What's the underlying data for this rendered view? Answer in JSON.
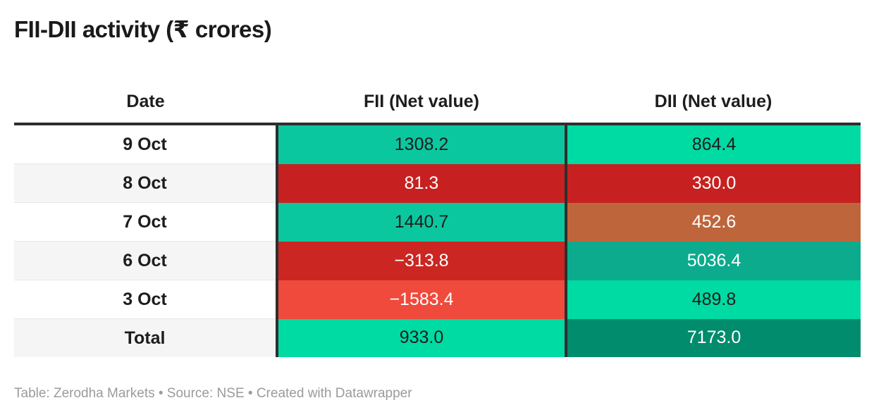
{
  "title": "FII-DII activity (₹ crores)",
  "footer": "Table: Zerodha Markets • Source: NSE • Created with Datawrapper",
  "colors": {
    "header_border": "#2e2e2e",
    "positive_teal": "#0bc7a0",
    "positive_mint": "#00daa3",
    "negative_red": "#c62120",
    "negative_coral": "#ef4a3c",
    "mixed_brown": "#be653c",
    "strong_teal": "#0cab8d",
    "total_green": "#008c6d",
    "alt_row": "#f5f5f5",
    "footer_text": "#9b9b9b"
  },
  "table": {
    "columns": [
      "Date",
      "FII (Net value)",
      "DII (Net value)"
    ],
    "rows": [
      {
        "date": "9 Oct",
        "fii": "1308.2",
        "fii_bg": "#0bc7a0",
        "fii_fg": "#1d1d1d",
        "dii": "864.4",
        "dii_bg": "#00daa3",
        "dii_fg": "#1d1d1d"
      },
      {
        "date": "8 Oct",
        "fii": "81.3",
        "fii_bg": "#c62120",
        "fii_fg": "#ffffff",
        "dii": "330.0",
        "dii_bg": "#c62120",
        "dii_fg": "#ffffff"
      },
      {
        "date": "7 Oct",
        "fii": "1440.7",
        "fii_bg": "#0bc7a0",
        "fii_fg": "#1d1d1d",
        "dii": "452.6",
        "dii_bg": "#be653c",
        "dii_fg": "#ffffff"
      },
      {
        "date": "6 Oct",
        "fii": "−313.8",
        "fii_bg": "#cb2621",
        "fii_fg": "#ffffff",
        "dii": "5036.4",
        "dii_bg": "#0cab8d",
        "dii_fg": "#ffffff"
      },
      {
        "date": "3 Oct",
        "fii": "−1583.4",
        "fii_bg": "#ef4a3c",
        "fii_fg": "#ffffff",
        "dii": "489.8",
        "dii_bg": "#00daa3",
        "dii_fg": "#1d1d1d"
      },
      {
        "date": "Total",
        "fii": "933.0",
        "fii_bg": "#00daa3",
        "fii_fg": "#1d1d1d",
        "dii": "7173.0",
        "dii_bg": "#008c6d",
        "dii_fg": "#ffffff"
      }
    ]
  },
  "chart_data": {
    "type": "table",
    "title": "FII-DII activity (₹ crores)",
    "columns": [
      "Date",
      "FII (Net value)",
      "DII (Net value)"
    ],
    "categories": [
      "9 Oct",
      "8 Oct",
      "7 Oct",
      "6 Oct",
      "3 Oct",
      "Total"
    ],
    "series": [
      {
        "name": "FII (Net value)",
        "values": [
          1308.2,
          81.3,
          1440.7,
          -313.8,
          -1583.4,
          933.0
        ]
      },
      {
        "name": "DII (Net value)",
        "values": [
          864.4,
          330.0,
          452.6,
          5036.4,
          489.8,
          7173.0
        ]
      }
    ],
    "layout": {
      "heatmap_cells": true,
      "positive_color": "green",
      "negative_color": "red"
    }
  }
}
